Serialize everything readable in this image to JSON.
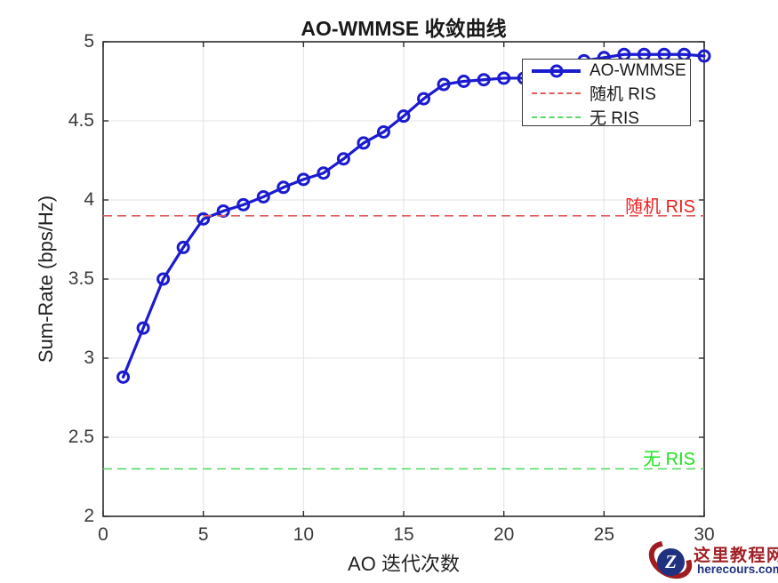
{
  "chart_data": {
    "type": "line",
    "title": "AO-WMMSE 收敛曲线",
    "xlabel": "AO 迭代次数",
    "ylabel": "Sum-Rate (bps/Hz)",
    "xlim": [
      0,
      30
    ],
    "ylim": [
      2,
      5
    ],
    "xticks": [
      0,
      5,
      10,
      15,
      20,
      25,
      30
    ],
    "yticks": [
      2,
      2.5,
      3,
      3.5,
      4,
      4.5,
      5
    ],
    "grid": true,
    "legend_position": "northeast",
    "series": [
      {
        "name": "AO-WMMSE",
        "type": "line+marker",
        "marker": "circle",
        "color": "#1b1bd0",
        "x": [
          1,
          2,
          3,
          4,
          5,
          6,
          7,
          8,
          9,
          10,
          11,
          12,
          13,
          14,
          15,
          16,
          17,
          18,
          19,
          20,
          21,
          22,
          23,
          24,
          25,
          26,
          27,
          28,
          29,
          30
        ],
        "y": [
          2.88,
          3.19,
          3.5,
          3.7,
          3.88,
          3.93,
          3.97,
          4.02,
          4.08,
          4.13,
          4.17,
          4.26,
          4.36,
          4.43,
          4.53,
          4.64,
          4.73,
          4.75,
          4.76,
          4.77,
          4.77,
          4.8,
          4.84,
          4.88,
          4.9,
          4.92,
          4.92,
          4.92,
          4.92,
          4.91
        ]
      },
      {
        "name": "随机 RIS",
        "type": "hline",
        "style": "dashed",
        "color": "#e05c5c",
        "value": 3.9
      },
      {
        "name": "无 RIS",
        "type": "hline",
        "style": "dashed",
        "color": "#5cd96c",
        "value": 2.3
      }
    ],
    "annotations": [
      {
        "text": "随机 RIS",
        "color": "#ee2020",
        "y": 3.9
      },
      {
        "text": "无 RIS",
        "color": "#1ce41c",
        "y": 2.3
      }
    ],
    "colors": {
      "grid": "#e3e3e3",
      "axis": "#2b2b2b",
      "tick_label": "#3a3a3a"
    }
  },
  "watermark": {
    "logo_letter": "Z",
    "site_cn": "这里教程网",
    "site_en": "herecours.com"
  }
}
